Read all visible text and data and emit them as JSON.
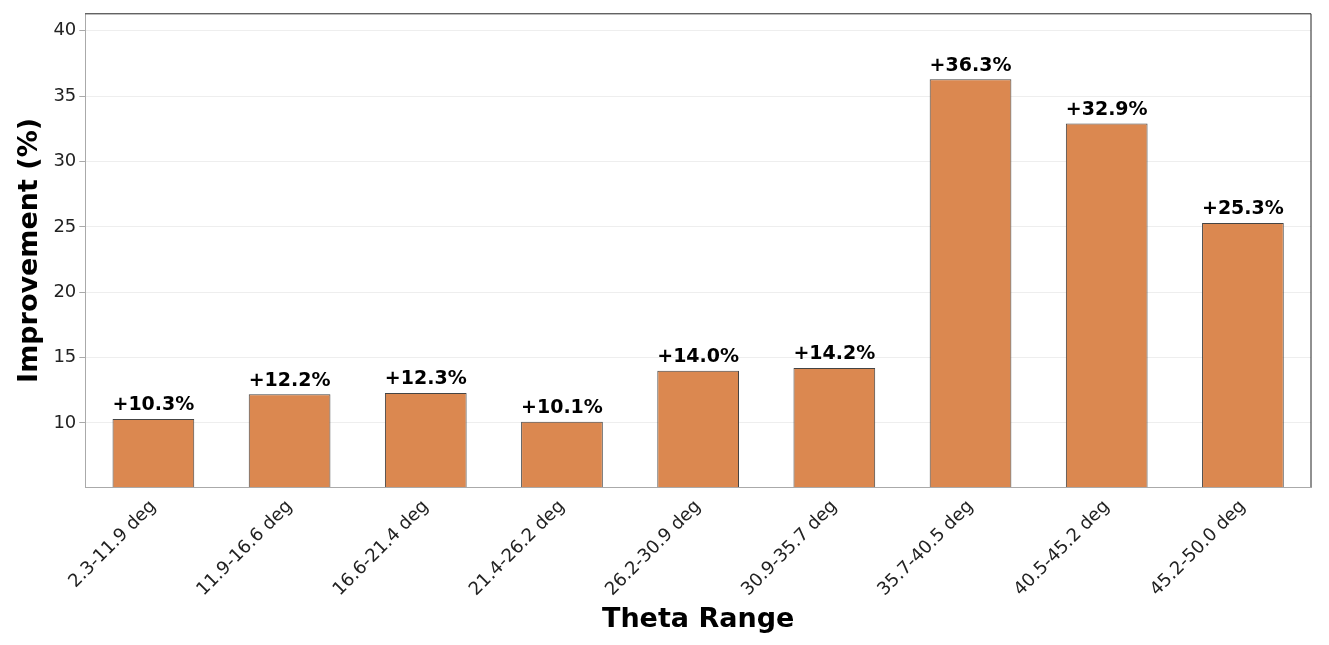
{
  "chart_data": {
    "type": "bar",
    "xlabel": "Theta Range",
    "ylabel": "Improvement (%)",
    "categories": [
      "2.3-11.9 deg",
      "11.9-16.6 deg",
      "16.6-21.4 deg",
      "21.4-26.2 deg",
      "26.2-30.9 deg",
      "30.9-35.7 deg",
      "35.7-40.5 deg",
      "40.5-45.2 deg",
      "45.2-50.0 deg"
    ],
    "values": [
      10.3,
      12.2,
      12.3,
      10.1,
      14.0,
      14.2,
      36.3,
      32.9,
      25.3
    ],
    "value_labels": [
      "+10.3%",
      "+12.2%",
      "+12.3%",
      "+10.1%",
      "+14.0%",
      "+14.2%",
      "+36.3%",
      "+32.9%",
      "+25.3%"
    ],
    "color": "#db8850",
    "ylim": [
      5.1,
      41.3
    ],
    "yticks": [
      10,
      15,
      20,
      25,
      30,
      35,
      40
    ],
    "grid": "y",
    "legend": false
  }
}
